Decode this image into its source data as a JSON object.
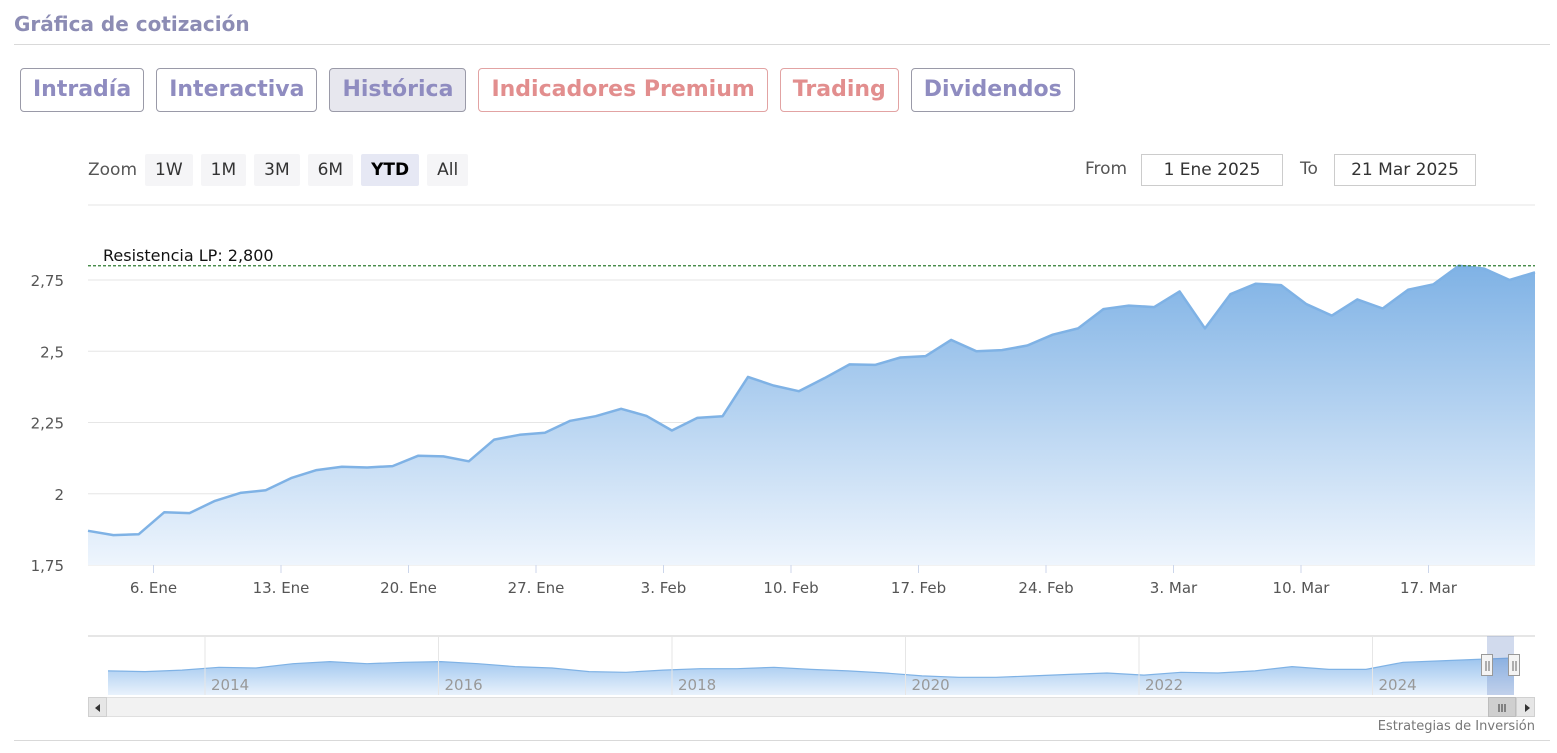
{
  "header": {
    "title": "Gráfica de cotización"
  },
  "tabs": [
    {
      "label": "Intradía",
      "active": false,
      "premium": false
    },
    {
      "label": "Interactiva",
      "active": false,
      "premium": false
    },
    {
      "label": "Histórica",
      "active": true,
      "premium": false
    },
    {
      "label": "Indicadores Premium",
      "active": false,
      "premium": true
    },
    {
      "label": "Trading",
      "active": false,
      "premium": true
    },
    {
      "label": "Dividendos",
      "active": false,
      "premium": false
    }
  ],
  "zoom": {
    "label": "Zoom",
    "buttons": [
      {
        "label": "1W",
        "active": false
      },
      {
        "label": "1M",
        "active": false
      },
      {
        "label": "3M",
        "active": false
      },
      {
        "label": "6M",
        "active": false
      },
      {
        "label": "YTD",
        "active": true
      },
      {
        "label": "All",
        "active": false
      }
    ]
  },
  "range": {
    "from_label": "From",
    "from_value": "1 Ene 2025",
    "to_label": "To",
    "to_value": "21 Mar 2025"
  },
  "colors": {
    "series_line": "#7fb2e5",
    "area_top": "#7fb2e5",
    "area_bottom": "#eef5fd",
    "resistance": "#2e7d32"
  },
  "chart_data": {
    "type": "area",
    "title": "",
    "xlabel": "",
    "ylabel": "",
    "x_ticks": [
      "6. Ene",
      "13. Ene",
      "20. Ene",
      "27. Ene",
      "3. Feb",
      "10. Feb",
      "17. Feb",
      "24. Feb",
      "3. Mar",
      "10. Mar",
      "17. Mar"
    ],
    "y_ticks": [
      "1,75",
      "2",
      "2,25",
      "2,5",
      "2,75"
    ],
    "y_tick_values": [
      1.75,
      2.0,
      2.25,
      2.5,
      2.75
    ],
    "ylim": [
      1.75,
      2.8
    ],
    "grid": true,
    "legend": "none",
    "annotations": [
      {
        "label": "Resistencia LP: 2,800",
        "value": 2.8,
        "style": "dashed"
      }
    ],
    "series": [
      {
        "values": [
          1.87,
          1.855,
          1.858,
          1.935,
          1.932,
          1.975,
          2.003,
          2.012,
          2.055,
          2.083,
          2.095,
          2.092,
          2.097,
          2.133,
          2.131,
          2.114,
          2.19,
          2.207,
          2.214,
          2.256,
          2.272,
          2.298,
          2.273,
          2.222,
          2.266,
          2.272,
          2.41,
          2.38,
          2.36,
          2.405,
          2.454,
          2.452,
          2.478,
          2.483,
          2.54,
          2.5,
          2.504,
          2.52,
          2.558,
          2.58,
          2.648,
          2.66,
          2.655,
          2.71,
          2.58,
          2.7,
          2.737,
          2.732,
          2.665,
          2.625,
          2.682,
          2.65,
          2.716,
          2.735,
          2.8,
          2.79,
          2.75,
          2.777
        ]
      }
    ]
  },
  "navigator": {
    "year_labels": [
      "2014",
      "2016",
      "2018",
      "2020",
      "2022",
      "2024"
    ],
    "values": [
      1.9,
      1.85,
      1.95,
      2.15,
      2.1,
      2.4,
      2.55,
      2.4,
      2.5,
      2.55,
      2.4,
      2.2,
      2.1,
      1.85,
      1.8,
      1.95,
      2.05,
      2.05,
      2.15,
      2.0,
      1.9,
      1.75,
      1.55,
      1.45,
      1.45,
      1.55,
      1.65,
      1.75,
      1.6,
      1.8,
      1.75,
      1.9,
      2.2,
      2.0,
      2.0,
      2.5,
      2.6,
      2.7,
      2.8
    ]
  },
  "credit": "Estrategias de Inversión"
}
